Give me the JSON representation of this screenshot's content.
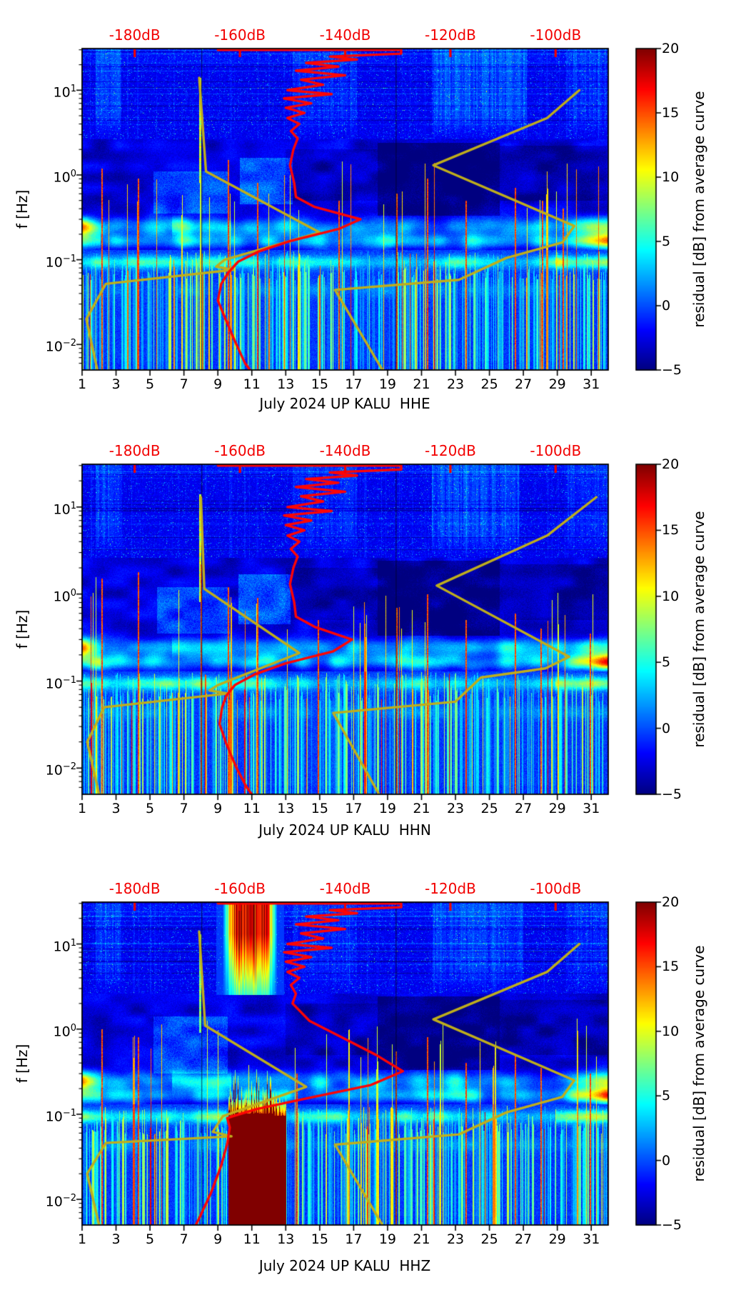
{
  "chart_data": {
    "type": "heatmap",
    "description": "Three day-vs-frequency spectrogram panels of seismic PSD residuals with overlaid average-PSD (red) and auxiliary (olive) curves",
    "colors": {
      "top_axis": "#f20000",
      "red_curve": "#fd0505",
      "yellow_curve": "#bfae1c",
      "colormap": "jet",
      "background": "#ffffff"
    },
    "top_axis": {
      "labels": [
        "-180dB",
        "-160dB",
        "-140dB",
        "-120dB",
        "-100dB"
      ],
      "fractions": [
        0.1,
        0.3,
        0.5,
        0.7,
        0.9
      ]
    },
    "x_axis": {
      "tick_labels": [
        "1",
        "3",
        "5",
        "7",
        "9",
        "11",
        "13",
        "15",
        "17",
        "19",
        "21",
        "23",
        "25",
        "27",
        "29",
        "31"
      ],
      "tick_days": [
        1,
        3,
        5,
        7,
        9,
        11,
        13,
        15,
        17,
        19,
        21,
        23,
        25,
        27,
        29,
        31
      ],
      "day_min": 1,
      "day_max": 32
    },
    "y_axis": {
      "label": "f [Hz]",
      "f_min": 0.005,
      "f_max": 31,
      "scale": "log",
      "ticks": [
        {
          "base": "10",
          "exp": "1",
          "f": 10
        },
        {
          "base": "10",
          "exp": "0",
          "f": 1
        },
        {
          "base": "10",
          "exp": "−1",
          "f": 0.1
        },
        {
          "base": "10",
          "exp": "−2",
          "f": 0.01
        }
      ]
    },
    "colorbar": {
      "label": "residual [dB] from average curve",
      "vmin": -5,
      "vmax": 20,
      "ticks": [
        {
          "label": "20",
          "v": 20
        },
        {
          "label": "15",
          "v": 15
        },
        {
          "label": "10",
          "v": 10
        },
        {
          "label": "5",
          "v": 5
        },
        {
          "label": "0",
          "v": 0
        },
        {
          "label": "−5",
          "v": -5
        }
      ]
    },
    "panels": [
      {
        "id": "HHE",
        "title": "July 2024 UP KALU  HHE",
        "seed": 101,
        "red_curve": [
          [
            9,
            30
          ],
          [
            19.8,
            30
          ],
          [
            19.8,
            27
          ],
          [
            15.6,
            25
          ],
          [
            17.2,
            23
          ],
          [
            14.2,
            21
          ],
          [
            16.1,
            19
          ],
          [
            13.6,
            17
          ],
          [
            16.5,
            15
          ],
          [
            13.9,
            13.3
          ],
          [
            15.2,
            11.6
          ],
          [
            13.1,
            10
          ],
          [
            15.7,
            9
          ],
          [
            12.9,
            8
          ],
          [
            14.5,
            7
          ],
          [
            13,
            6.2
          ],
          [
            14.1,
            5.4
          ],
          [
            13.1,
            4.7
          ],
          [
            13.8,
            4
          ],
          [
            13.3,
            3.3
          ],
          [
            13.7,
            2.7
          ],
          [
            13.45,
            2
          ],
          [
            13.25,
            1.3
          ],
          [
            13.5,
            0.8
          ],
          [
            13.6,
            0.55
          ],
          [
            14.7,
            0.42
          ],
          [
            17.4,
            0.3
          ],
          [
            16.1,
            0.23
          ],
          [
            13.2,
            0.165
          ],
          [
            11.4,
            0.125
          ],
          [
            10.2,
            0.095
          ],
          [
            9.6,
            0.07
          ],
          [
            9.2,
            0.052
          ],
          [
            9,
            0.033
          ],
          [
            9.45,
            0.02
          ],
          [
            10,
            0.011
          ],
          [
            10.6,
            0.006
          ],
          [
            10.9,
            0.005
          ]
        ],
        "yellow_curves": [
          [
            [
              7.9,
              14
            ],
            [
              8.3,
              1.1
            ],
            [
              15,
              0.21
            ],
            [
              9.4,
              0.1
            ],
            [
              8.9,
              0.083
            ],
            [
              9.9,
              0.076
            ],
            [
              2.4,
              0.052
            ],
            [
              1.25,
              0.02
            ],
            [
              1.9,
              0.005
            ]
          ],
          [
            [
              30.3,
              10
            ],
            [
              28.4,
              4.7
            ],
            [
              21.7,
              1.3
            ],
            [
              30,
              0.25
            ],
            [
              29.3,
              0.16
            ],
            [
              26,
              0.105
            ],
            [
              23.2,
              0.058
            ],
            [
              15.9,
              0.044
            ],
            [
              18.7,
              0.005
            ]
          ]
        ],
        "red_streaks": [
          [
            2.15,
            1.2
          ],
          [
            4.3,
            0.9
          ],
          [
            9.6,
            1.5
          ],
          [
            11.3,
            0.8
          ],
          [
            16.1,
            0.5
          ],
          [
            19.5,
            0.6
          ],
          [
            21.3,
            0.9
          ],
          [
            23.6,
            0.5
          ],
          [
            26.5,
            0.7
          ],
          [
            28.1,
            0.5
          ],
          [
            29.3,
            0.4
          ]
        ],
        "gap_days": [
          8.05,
          19.5
        ],
        "tall_streaks": [
          [
            7.97,
            0.8,
            14,
            10
          ]
        ],
        "patches": [
          [
            5.2,
            9.6,
            0.35,
            1.1,
            3.2
          ],
          [
            10.3,
            13.4,
            0.45,
            1.6,
            3.8
          ]
        ],
        "pools": [
          [
            18.4,
            25.6,
            0.33,
            2.4,
            -2.4
          ],
          [
            25.6,
            31.9,
            0.5,
            2.2,
            -1.2
          ],
          [
            13,
            18.4,
            0.5,
            2,
            -1
          ]
        ],
        "smears": [
          [
            21.6,
            27.2,
            3
          ],
          [
            1.8,
            3.3,
            2.2
          ],
          [
            13.4,
            17.2,
            1.6
          ],
          [
            29.5,
            32,
            1.8
          ]
        ]
      },
      {
        "id": "HHN",
        "title": "July 2024 UP KALU  HHN",
        "seed": 202,
        "red_curve": [
          [
            9,
            30
          ],
          [
            19.8,
            30
          ],
          [
            19.8,
            27
          ],
          [
            15.6,
            25
          ],
          [
            17.2,
            23
          ],
          [
            14.2,
            21
          ],
          [
            16.1,
            19
          ],
          [
            13.6,
            17
          ],
          [
            16.5,
            15
          ],
          [
            13.9,
            13.3
          ],
          [
            15.2,
            11.6
          ],
          [
            13.1,
            10
          ],
          [
            15.7,
            9
          ],
          [
            12.9,
            8
          ],
          [
            14.5,
            7
          ],
          [
            13,
            6.2
          ],
          [
            14.1,
            5.4
          ],
          [
            13.1,
            4.7
          ],
          [
            13.8,
            4
          ],
          [
            13.3,
            3.3
          ],
          [
            13.7,
            2.7
          ],
          [
            13.45,
            2
          ],
          [
            13.25,
            1.3
          ],
          [
            13.5,
            0.8
          ],
          [
            13.6,
            0.55
          ],
          [
            14.7,
            0.42
          ],
          [
            16.9,
            0.3
          ],
          [
            15.8,
            0.22
          ],
          [
            13,
            0.16
          ],
          [
            11.2,
            0.12
          ],
          [
            10,
            0.09
          ],
          [
            9.5,
            0.068
          ],
          [
            9.25,
            0.05
          ],
          [
            9.1,
            0.032
          ],
          [
            9.5,
            0.019
          ],
          [
            10.1,
            0.01
          ],
          [
            10.7,
            0.006
          ],
          [
            11,
            0.005
          ]
        ],
        "yellow_curves": [
          [
            [
              8,
              13
            ],
            [
              8.2,
              1.15
            ],
            [
              13.8,
              0.21
            ],
            [
              9,
              0.09
            ],
            [
              8.5,
              0.078
            ],
            [
              9.6,
              0.072
            ],
            [
              2.3,
              0.05
            ],
            [
              1.3,
              0.02
            ],
            [
              2,
              0.005
            ]
          ],
          [
            [
              31.3,
              13
            ],
            [
              28.4,
              4.7
            ],
            [
              21.9,
              1.25
            ],
            [
              29.7,
              0.19
            ],
            [
              28.3,
              0.14
            ],
            [
              24.5,
              0.11
            ],
            [
              23,
              0.058
            ],
            [
              15.8,
              0.043
            ],
            [
              18.5,
              0.005
            ]
          ]
        ],
        "red_streaks": [
          [
            2.15,
            1.5
          ],
          [
            4.3,
            1.8
          ],
          [
            8,
            2.2
          ],
          [
            9.6,
            1.2
          ],
          [
            11.3,
            0.9
          ],
          [
            14.9,
            0.5
          ],
          [
            19.5,
            0.7
          ],
          [
            21.3,
            1
          ],
          [
            23.6,
            0.5
          ],
          [
            26.5,
            0.6
          ],
          [
            28,
            0.4
          ],
          [
            30.9,
            0.35
          ]
        ],
        "gap_days": [
          8.05,
          19.5
        ],
        "tall_streaks": [
          [
            7.97,
            0.8,
            14,
            10
          ]
        ],
        "patches": [
          [
            5.4,
            9.7,
            0.35,
            1.2,
            3.4
          ],
          [
            10.2,
            13.3,
            0.45,
            1.7,
            4.2
          ]
        ],
        "pools": [
          [
            18.4,
            25.6,
            0.33,
            2.4,
            -2.4
          ],
          [
            25.6,
            31.9,
            0.5,
            2.2,
            -1.2
          ],
          [
            13,
            18.4,
            0.5,
            2,
            -1
          ]
        ],
        "smears": [
          [
            21.6,
            26.8,
            2.8
          ],
          [
            1.8,
            3.3,
            2.2
          ],
          [
            13.4,
            17.2,
            1.6
          ],
          [
            29.5,
            32,
            1.6
          ]
        ]
      },
      {
        "id": "HHZ",
        "title": "July 2024 UP KALU  HHZ",
        "seed": 303,
        "red_curve": [
          [
            9,
            30
          ],
          [
            19.8,
            30
          ],
          [
            19.8,
            27
          ],
          [
            15.6,
            25
          ],
          [
            17.2,
            23
          ],
          [
            14.2,
            21
          ],
          [
            16.1,
            19
          ],
          [
            13.6,
            17
          ],
          [
            16.5,
            15
          ],
          [
            13.9,
            13.3
          ],
          [
            15.2,
            11.6
          ],
          [
            13.1,
            10
          ],
          [
            15.7,
            9
          ],
          [
            12.9,
            8
          ],
          [
            14.5,
            7
          ],
          [
            13,
            6.2
          ],
          [
            14.1,
            5.4
          ],
          [
            13.1,
            4.7
          ],
          [
            13.8,
            4
          ],
          [
            13.3,
            3.3
          ],
          [
            13.6,
            2.6
          ],
          [
            13.4,
            2
          ],
          [
            14.4,
            1.25
          ],
          [
            16.3,
            0.8
          ],
          [
            18.3,
            0.5
          ],
          [
            19.9,
            0.32
          ],
          [
            18,
            0.22
          ],
          [
            14,
            0.15
          ],
          [
            11.3,
            0.115
          ],
          [
            9.9,
            0.095
          ],
          [
            9.55,
            0.09
          ],
          [
            9.7,
            0.07
          ],
          [
            9.55,
            0.045
          ],
          [
            9.2,
            0.025
          ],
          [
            8.6,
            0.012
          ],
          [
            7.9,
            0.006
          ],
          [
            7.7,
            0.005
          ]
        ],
        "yellow_curves": [
          [
            [
              7.9,
              14
            ],
            [
              8.25,
              1.1
            ],
            [
              14.2,
              0.21
            ],
            [
              9.3,
              0.095
            ],
            [
              8.7,
              0.062
            ],
            [
              9.8,
              0.055
            ],
            [
              2.4,
              0.046
            ],
            [
              1.3,
              0.02
            ],
            [
              2,
              0.005
            ]
          ],
          [
            [
              30.3,
              10
            ],
            [
              28.4,
              4.7
            ],
            [
              21.7,
              1.3
            ],
            [
              30,
              0.25
            ],
            [
              29.3,
              0.16
            ],
            [
              26,
              0.105
            ],
            [
              23.2,
              0.058
            ],
            [
              15.9,
              0.044
            ],
            [
              18.7,
              0.005
            ]
          ]
        ],
        "red_streaks": [
          [
            2.15,
            1
          ],
          [
            4.3,
            0.8
          ],
          [
            13.6,
            0.3
          ],
          [
            19.45,
            0.55
          ],
          [
            21.3,
            0.8
          ],
          [
            23.6,
            0.4
          ],
          [
            26.5,
            0.5
          ],
          [
            28,
            0.35
          ],
          [
            30.9,
            0.3
          ]
        ],
        "gap_days": [
          8.05,
          19.5
        ],
        "tall_streaks": [
          [
            7.97,
            0.9,
            13,
            8
          ]
        ],
        "patches": [
          [
            5.2,
            9.6,
            0.3,
            1.4,
            3.2
          ]
        ],
        "pools": [
          [
            18.4,
            25.6,
            0.33,
            2.4,
            -2.4
          ],
          [
            25.6,
            31.9,
            0.5,
            2.2,
            -1.2
          ],
          [
            13,
            18.4,
            0.5,
            2,
            -1
          ]
        ],
        "smears": [
          [
            21.6,
            27,
            2.2
          ],
          [
            1.8,
            3.3,
            2
          ],
          [
            13.4,
            17.2,
            1.4
          ],
          [
            29.5,
            32,
            1.5
          ]
        ],
        "blob": {
          "day0": 9.62,
          "day1": 13.05,
          "f_top": 0.092
        },
        "top_band": {
          "center": 10.9,
          "halfwidth": 1.6,
          "f_min": 2.8
        }
      }
    ]
  }
}
